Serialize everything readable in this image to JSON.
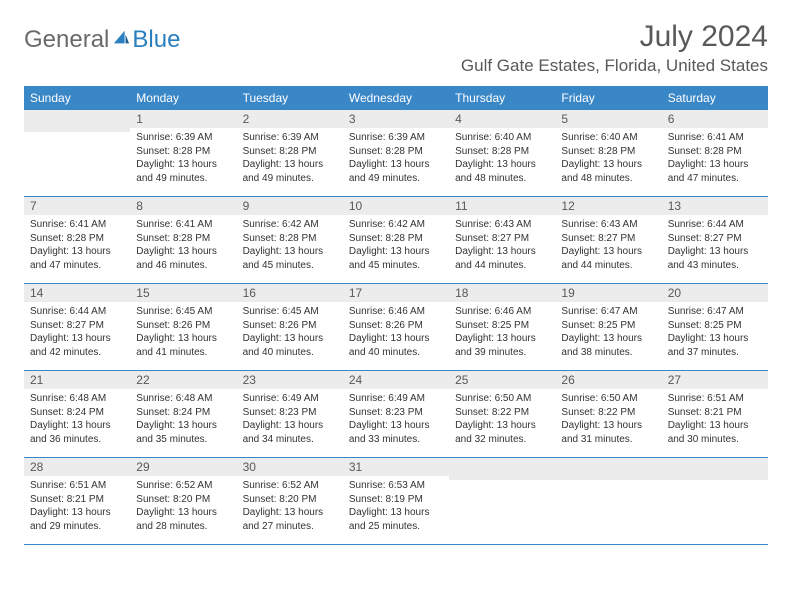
{
  "brand": {
    "part1": "General",
    "part2": "Blue"
  },
  "title": "July 2024",
  "location": "Gulf Gate Estates, Florida, United States",
  "colors": {
    "header_bg": "#3a87c8",
    "header_text": "#ffffff",
    "daynum_bg": "#ececec",
    "text_muted": "#595959",
    "rule": "#3a87c8"
  },
  "dayNames": [
    "Sunday",
    "Monday",
    "Tuesday",
    "Wednesday",
    "Thursday",
    "Friday",
    "Saturday"
  ],
  "firstWeekday": 1,
  "daysInMonth": 31,
  "days": {
    "1": {
      "sunrise": "6:39 AM",
      "sunset": "8:28 PM",
      "daylight": "13 hours and 49 minutes."
    },
    "2": {
      "sunrise": "6:39 AM",
      "sunset": "8:28 PM",
      "daylight": "13 hours and 49 minutes."
    },
    "3": {
      "sunrise": "6:39 AM",
      "sunset": "8:28 PM",
      "daylight": "13 hours and 49 minutes."
    },
    "4": {
      "sunrise": "6:40 AM",
      "sunset": "8:28 PM",
      "daylight": "13 hours and 48 minutes."
    },
    "5": {
      "sunrise": "6:40 AM",
      "sunset": "8:28 PM",
      "daylight": "13 hours and 48 minutes."
    },
    "6": {
      "sunrise": "6:41 AM",
      "sunset": "8:28 PM",
      "daylight": "13 hours and 47 minutes."
    },
    "7": {
      "sunrise": "6:41 AM",
      "sunset": "8:28 PM",
      "daylight": "13 hours and 47 minutes."
    },
    "8": {
      "sunrise": "6:41 AM",
      "sunset": "8:28 PM",
      "daylight": "13 hours and 46 minutes."
    },
    "9": {
      "sunrise": "6:42 AM",
      "sunset": "8:28 PM",
      "daylight": "13 hours and 45 minutes."
    },
    "10": {
      "sunrise": "6:42 AM",
      "sunset": "8:28 PM",
      "daylight": "13 hours and 45 minutes."
    },
    "11": {
      "sunrise": "6:43 AM",
      "sunset": "8:27 PM",
      "daylight": "13 hours and 44 minutes."
    },
    "12": {
      "sunrise": "6:43 AM",
      "sunset": "8:27 PM",
      "daylight": "13 hours and 44 minutes."
    },
    "13": {
      "sunrise": "6:44 AM",
      "sunset": "8:27 PM",
      "daylight": "13 hours and 43 minutes."
    },
    "14": {
      "sunrise": "6:44 AM",
      "sunset": "8:27 PM",
      "daylight": "13 hours and 42 minutes."
    },
    "15": {
      "sunrise": "6:45 AM",
      "sunset": "8:26 PM",
      "daylight": "13 hours and 41 minutes."
    },
    "16": {
      "sunrise": "6:45 AM",
      "sunset": "8:26 PM",
      "daylight": "13 hours and 40 minutes."
    },
    "17": {
      "sunrise": "6:46 AM",
      "sunset": "8:26 PM",
      "daylight": "13 hours and 40 minutes."
    },
    "18": {
      "sunrise": "6:46 AM",
      "sunset": "8:25 PM",
      "daylight": "13 hours and 39 minutes."
    },
    "19": {
      "sunrise": "6:47 AM",
      "sunset": "8:25 PM",
      "daylight": "13 hours and 38 minutes."
    },
    "20": {
      "sunrise": "6:47 AM",
      "sunset": "8:25 PM",
      "daylight": "13 hours and 37 minutes."
    },
    "21": {
      "sunrise": "6:48 AM",
      "sunset": "8:24 PM",
      "daylight": "13 hours and 36 minutes."
    },
    "22": {
      "sunrise": "6:48 AM",
      "sunset": "8:24 PM",
      "daylight": "13 hours and 35 minutes."
    },
    "23": {
      "sunrise": "6:49 AM",
      "sunset": "8:23 PM",
      "daylight": "13 hours and 34 minutes."
    },
    "24": {
      "sunrise": "6:49 AM",
      "sunset": "8:23 PM",
      "daylight": "13 hours and 33 minutes."
    },
    "25": {
      "sunrise": "6:50 AM",
      "sunset": "8:22 PM",
      "daylight": "13 hours and 32 minutes."
    },
    "26": {
      "sunrise": "6:50 AM",
      "sunset": "8:22 PM",
      "daylight": "13 hours and 31 minutes."
    },
    "27": {
      "sunrise": "6:51 AM",
      "sunset": "8:21 PM",
      "daylight": "13 hours and 30 minutes."
    },
    "28": {
      "sunrise": "6:51 AM",
      "sunset": "8:21 PM",
      "daylight": "13 hours and 29 minutes."
    },
    "29": {
      "sunrise": "6:52 AM",
      "sunset": "8:20 PM",
      "daylight": "13 hours and 28 minutes."
    },
    "30": {
      "sunrise": "6:52 AM",
      "sunset": "8:20 PM",
      "daylight": "13 hours and 27 minutes."
    },
    "31": {
      "sunrise": "6:53 AM",
      "sunset": "8:19 PM",
      "daylight": "13 hours and 25 minutes."
    }
  },
  "labels": {
    "sunrise": "Sunrise:",
    "sunset": "Sunset:",
    "daylight": "Daylight:"
  }
}
